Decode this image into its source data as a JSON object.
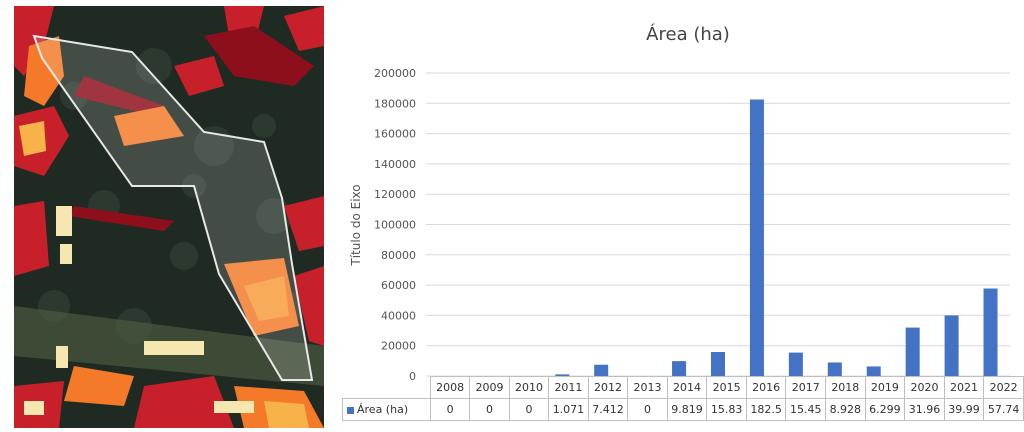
{
  "chart_data": {
    "type": "bar",
    "title": "Área (ha)",
    "ylabel": "Título do Eixo",
    "xlabel": "",
    "ylim": [
      0,
      200000
    ],
    "yticks": [
      0,
      20000,
      40000,
      60000,
      80000,
      100000,
      120000,
      140000,
      160000,
      180000,
      200000
    ],
    "ytick_labels": [
      "0",
      "20000",
      "40000",
      "60000",
      "80000",
      "100000",
      "120000",
      "140000",
      "160000",
      "180000",
      "200000"
    ],
    "grid": true,
    "legend": "data-table",
    "categories": [
      "2008",
      "2009",
      "2010",
      "2011",
      "2012",
      "2013",
      "2014",
      "2015",
      "2016",
      "2017",
      "2018",
      "2019",
      "2020",
      "2021",
      "2022"
    ],
    "series": [
      {
        "name": "Área (ha)",
        "color": "#4472c4",
        "values": [
          0,
          0,
          0,
          1071,
          7412,
          0,
          9819,
          15830,
          182500,
          15450,
          8928,
          6299,
          31960,
          39990,
          57740
        ],
        "table_labels": [
          "0",
          "0",
          "0",
          "1.071",
          "7.412",
          "0",
          "9.819",
          "15.83",
          "182.5",
          "15.45",
          "8.928",
          "6.299",
          "31.96",
          "39.99",
          "57.74"
        ]
      }
    ]
  },
  "map": {
    "background_color": "#1f2a22",
    "hotspot_colors": [
      "#8e0f1c",
      "#c8202b",
      "#e8432a",
      "#f47a2a",
      "#f8b24a",
      "#f6e6b0"
    ],
    "boundary_color": "#e8e8e8"
  }
}
